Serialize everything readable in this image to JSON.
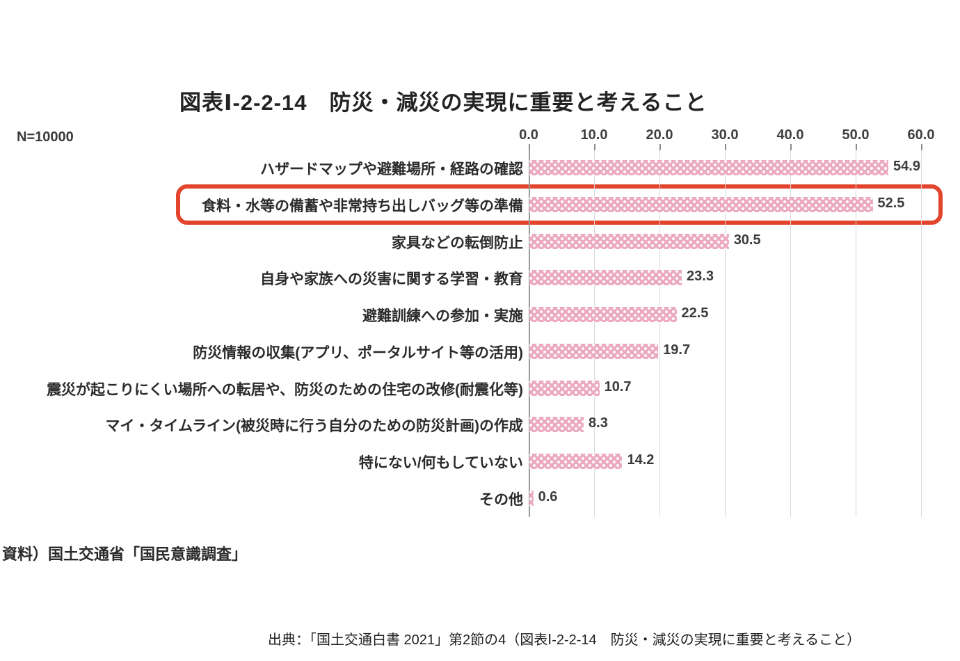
{
  "title": "図表Ⅰ-2-2-14　防災・減災の実現に重要と考えること",
  "sample_size_label": "N=10000",
  "source_note": "資料）国土交通省「国民意識調査」",
  "caption": "出典：「国土交通白書 2021」第2節の4（図表Ⅰ-2-2-14　防災・減災の実現に重要と考えること）",
  "colors": {
    "bar": "#ecaac2",
    "bar_dots": "#ffffff",
    "highlight_box": "#e2452c",
    "gridline": "#d9d9d9",
    "axis_line": "#9b9b9b",
    "text": "#2e2e2e"
  },
  "chart_data": {
    "type": "bar",
    "orientation": "horizontal",
    "title": "図表Ⅰ-2-2-14　防災・減災の実現に重要と考えること",
    "sample_size": "N=10000",
    "xlim": [
      0,
      60
    ],
    "x_ticks": [
      0.0,
      10.0,
      20.0,
      30.0,
      40.0,
      50.0,
      60.0
    ],
    "tick_labels": [
      "0.0",
      "10.0",
      "20.0",
      "30.0",
      "40.0",
      "50.0",
      "60.0"
    ],
    "grid": true,
    "categories": [
      "ハザードマップや避難場所・経路の確認",
      "食料・水等の備蓄や非常持ち出しバッグ等の準備",
      "家具などの転倒防止",
      "自身や家族への災害に関する学習・教育",
      "避難訓練への参加・実施",
      "防災情報の収集(アプリ、ポータルサイト等の活用)",
      "震災が起こりにくい場所への転居や、防災のための住宅の改修(耐震化等)",
      "マイ・タイムライン(被災時に行う自分のための防災計画)の作成",
      "特にない/何もしていない",
      "その他"
    ],
    "values": [
      54.9,
      52.5,
      30.5,
      23.3,
      22.5,
      19.7,
      10.7,
      8.3,
      14.2,
      0.6
    ],
    "value_labels": [
      "54.9",
      "52.5",
      "30.5",
      "23.3",
      "22.5",
      "19.7",
      "10.7",
      "8.3",
      "14.2",
      "0.6"
    ],
    "highlighted_index": 1
  }
}
